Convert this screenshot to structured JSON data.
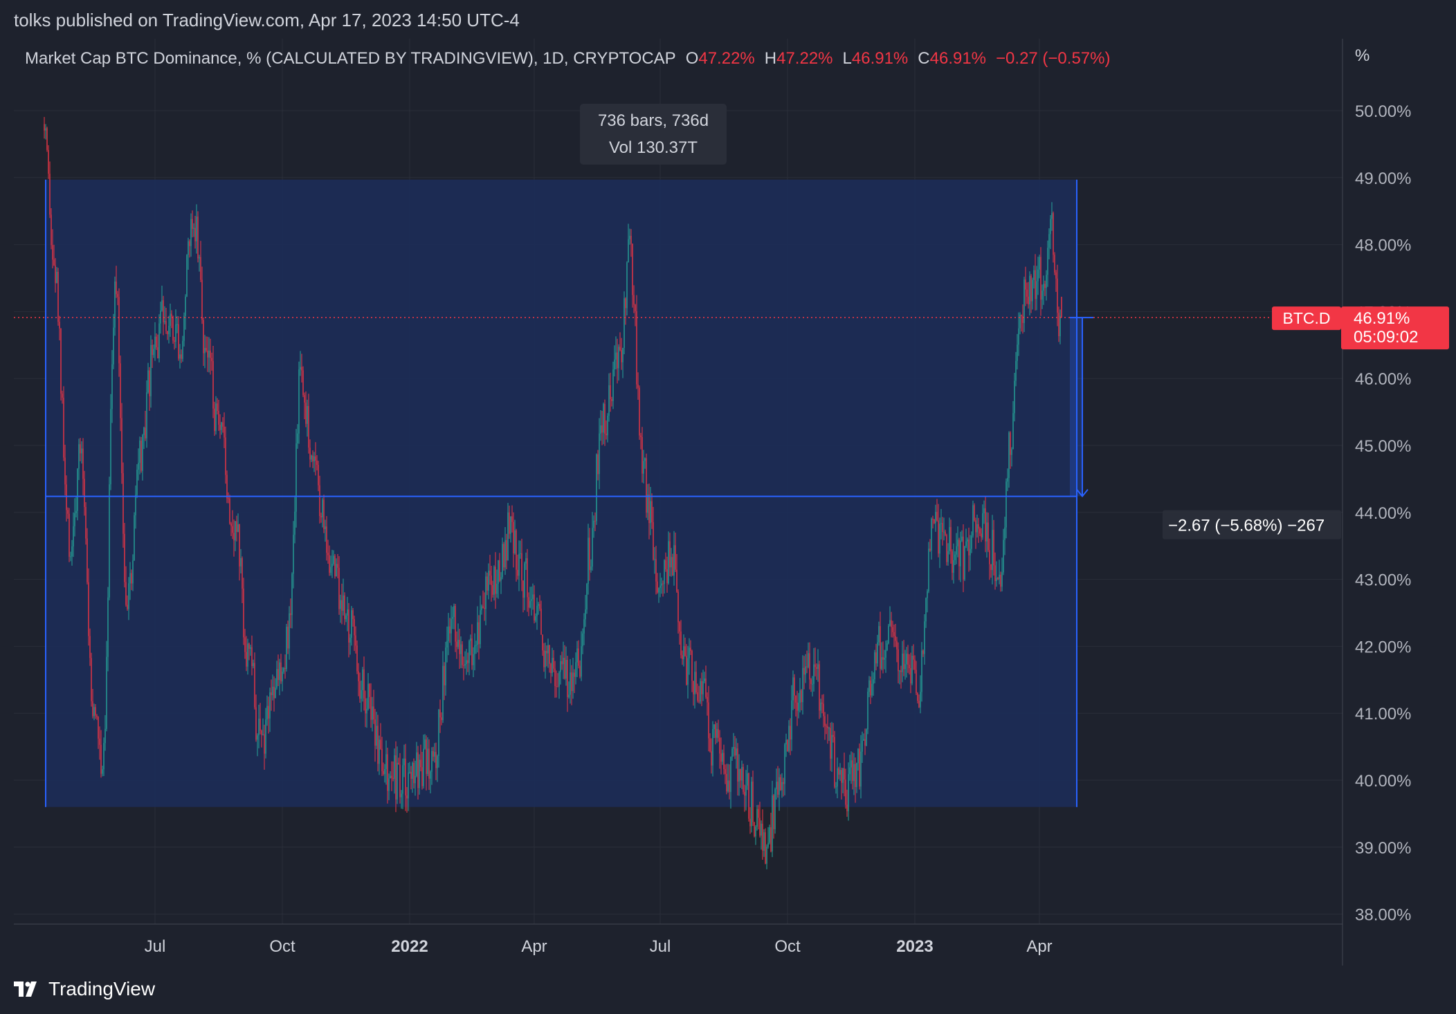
{
  "header": {
    "publisher": "tolks published on TradingView.com, Apr 17, 2023 14:50 UTC-4",
    "symbol_desc": "Market Cap BTC Dominance, % (CALCULATED BY TRADINGVIEW), 1D, CRYPTOCAP",
    "ohlc": [
      {
        "label": "O",
        "value": "47.22%"
      },
      {
        "label": "H",
        "value": "47.22%"
      },
      {
        "label": "L",
        "value": "46.91%"
      },
      {
        "label": "C",
        "value": "46.91%"
      }
    ],
    "change": "−0.27 (−0.57%)"
  },
  "price_scale": {
    "unit_label": "%",
    "ticks": [
      "50.00%",
      "49.00%",
      "48.00%",
      "47.00%",
      "46.00%",
      "45.00%",
      "44.00%",
      "43.00%",
      "42.00%",
      "41.00%",
      "40.00%",
      "39.00%",
      "38.00%"
    ],
    "tick_values": [
      50,
      49,
      48,
      47,
      46,
      45,
      44,
      43,
      42,
      41,
      40,
      39,
      38
    ]
  },
  "time_scale": {
    "labels": [
      {
        "text": "Jul",
        "bold": false
      },
      {
        "text": "Oct",
        "bold": false
      },
      {
        "text": "2022",
        "bold": true
      },
      {
        "text": "Apr",
        "bold": false
      },
      {
        "text": "Jul",
        "bold": false
      },
      {
        "text": "Oct",
        "bold": false
      },
      {
        "text": "2023",
        "bold": true
      },
      {
        "text": "Apr",
        "bold": false
      }
    ]
  },
  "range_box": {
    "line1": "736 bars, 736d",
    "line2": "Vol 130.37T",
    "top_value": 48.97,
    "bottom_value": 39.6
  },
  "measure": {
    "label": "−2.67 (−5.68%) −267",
    "from_value": 46.91,
    "to_value": 44.24
  },
  "last_price": {
    "symbol": "BTC.D",
    "price": "46.91%",
    "countdown": "05:09:02",
    "value": 46.91
  },
  "footer": {
    "brand": "TradingView"
  },
  "colors": {
    "background": "#1e222d",
    "up": "#26a69a",
    "down": "#f23645",
    "box_fill": "#1c2c55",
    "box_line": "#2962ff",
    "label_red": "#f23645"
  },
  "chart_data": {
    "type": "candlestick",
    "title": "Market Cap BTC Dominance, % (CALCULATED BY TRADINGVIEW), 1D, CRYPTOCAP",
    "x_range": [
      "2021-04-12",
      "2023-04-17"
    ],
    "ylim": [
      38,
      50.5
    ],
    "xlabel": "",
    "ylabel": "%",
    "grid": true,
    "path": [
      [
        "2021-04-12",
        49.6
      ],
      [
        "2021-04-20",
        47.6
      ],
      [
        "2021-05-01",
        43.5
      ],
      [
        "2021-05-10",
        44.8
      ],
      [
        "2021-05-18",
        41.0
      ],
      [
        "2021-05-25",
        40.4
      ],
      [
        "2021-06-03",
        47.4
      ],
      [
        "2021-06-12",
        42.6
      ],
      [
        "2021-06-21",
        44.7
      ],
      [
        "2021-07-02",
        46.5
      ],
      [
        "2021-07-12",
        47.1
      ],
      [
        "2021-07-20",
        46.6
      ],
      [
        "2021-07-30",
        48.5
      ],
      [
        "2021-08-08",
        46.4
      ],
      [
        "2021-08-18",
        45.0
      ],
      [
        "2021-08-28",
        43.9
      ],
      [
        "2021-09-08",
        41.8
      ],
      [
        "2021-09-16",
        40.5
      ],
      [
        "2021-09-25",
        41.4
      ],
      [
        "2021-10-07",
        42.2
      ],
      [
        "2021-10-15",
        46.2
      ],
      [
        "2021-10-25",
        44.7
      ],
      [
        "2021-11-05",
        43.3
      ],
      [
        "2021-11-18",
        42.4
      ],
      [
        "2021-12-02",
        41.3
      ],
      [
        "2021-12-15",
        40.1
      ],
      [
        "2021-12-28",
        39.9
      ],
      [
        "2022-01-08",
        40.1
      ],
      [
        "2022-01-18",
        40.3
      ],
      [
        "2022-02-01",
        42.2
      ],
      [
        "2022-02-15",
        42.0
      ],
      [
        "2022-03-01",
        42.9
      ],
      [
        "2022-03-15",
        43.7
      ],
      [
        "2022-03-25",
        43.1
      ],
      [
        "2022-04-08",
        42.1
      ],
      [
        "2022-04-22",
        41.5
      ],
      [
        "2022-05-05",
        41.9
      ],
      [
        "2022-05-12",
        43.4
      ],
      [
        "2022-05-20",
        45.2
      ],
      [
        "2022-06-01",
        46.2
      ],
      [
        "2022-06-10",
        47.8
      ],
      [
        "2022-06-20",
        44.4
      ],
      [
        "2022-06-30",
        43.2
      ],
      [
        "2022-07-10",
        43.3
      ],
      [
        "2022-07-20",
        41.8
      ],
      [
        "2022-07-30",
        41.6
      ],
      [
        "2022-08-10",
        40.4
      ],
      [
        "2022-08-22",
        40.2
      ],
      [
        "2022-09-05",
        39.7
      ],
      [
        "2022-09-15",
        38.9
      ],
      [
        "2022-09-28",
        40.2
      ],
      [
        "2022-10-08",
        41.3
      ],
      [
        "2022-10-20",
        41.6
      ],
      [
        "2022-11-01",
        40.4
      ],
      [
        "2022-11-10",
        39.8
      ],
      [
        "2022-11-22",
        40.2
      ],
      [
        "2022-12-05",
        41.9
      ],
      [
        "2022-12-15",
        42.1
      ],
      [
        "2022-12-25",
        41.7
      ],
      [
        "2023-01-05",
        41.4
      ],
      [
        "2023-01-14",
        43.7
      ],
      [
        "2023-01-25",
        43.6
      ],
      [
        "2023-02-05",
        43.2
      ],
      [
        "2023-02-15",
        43.9
      ],
      [
        "2023-02-25",
        43.5
      ],
      [
        "2023-03-05",
        43.0
      ],
      [
        "2023-03-12",
        45.2
      ],
      [
        "2023-03-20",
        47.1
      ],
      [
        "2023-03-28",
        47.4
      ],
      [
        "2023-04-04",
        47.5
      ],
      [
        "2023-04-10",
        48.4
      ],
      [
        "2023-04-13",
        47.6
      ],
      [
        "2023-04-17",
        46.91
      ]
    ],
    "last": {
      "date": "2023-04-17",
      "open": 47.22,
      "high": 47.22,
      "low": 46.91,
      "close": 46.91
    }
  }
}
